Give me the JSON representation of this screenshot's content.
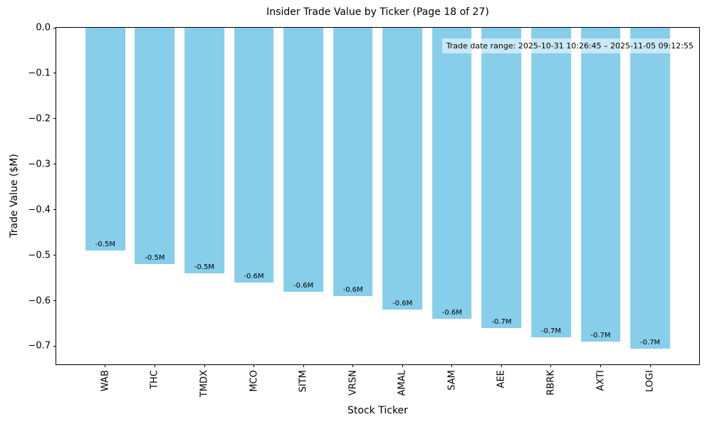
{
  "chart_data": {
    "type": "bar",
    "title": "Insider Trade Value by Ticker (Page 18 of 27)",
    "xlabel": "Stock Ticker",
    "ylabel": "Trade Value ($M)",
    "annotation": "Trade date range: 2025-10-31 10:26:45 – 2025-11-05 09:12:55",
    "categories": [
      "WAB",
      "THC",
      "TMDX",
      "MCO",
      "SITM",
      "VRSN",
      "AMAL",
      "SAM",
      "AEE",
      "RBRK",
      "AXTI",
      "LOGI"
    ],
    "values": [
      -0.49,
      -0.52,
      -0.54,
      -0.56,
      -0.58,
      -0.59,
      -0.62,
      -0.64,
      -0.66,
      -0.68,
      -0.69,
      -0.705
    ],
    "bar_labels": [
      "-0.5M",
      "-0.5M",
      "-0.5M",
      "-0.6M",
      "-0.6M",
      "-0.6M",
      "-0.6M",
      "-0.6M",
      "-0.7M",
      "-0.7M",
      "-0.7M",
      "-0.7M"
    ],
    "bar_color": "#87CEEB",
    "ylim": [
      -0.74,
      0
    ],
    "yticks": [
      0.0,
      -0.1,
      -0.2,
      -0.3,
      -0.4,
      -0.5,
      -0.6,
      -0.7
    ],
    "ytick_labels": [
      "0.0",
      "−0.1",
      "−0.2",
      "−0.3",
      "−0.4",
      "−0.5",
      "−0.6",
      "−0.7"
    ],
    "grid": false,
    "legend": null
  }
}
